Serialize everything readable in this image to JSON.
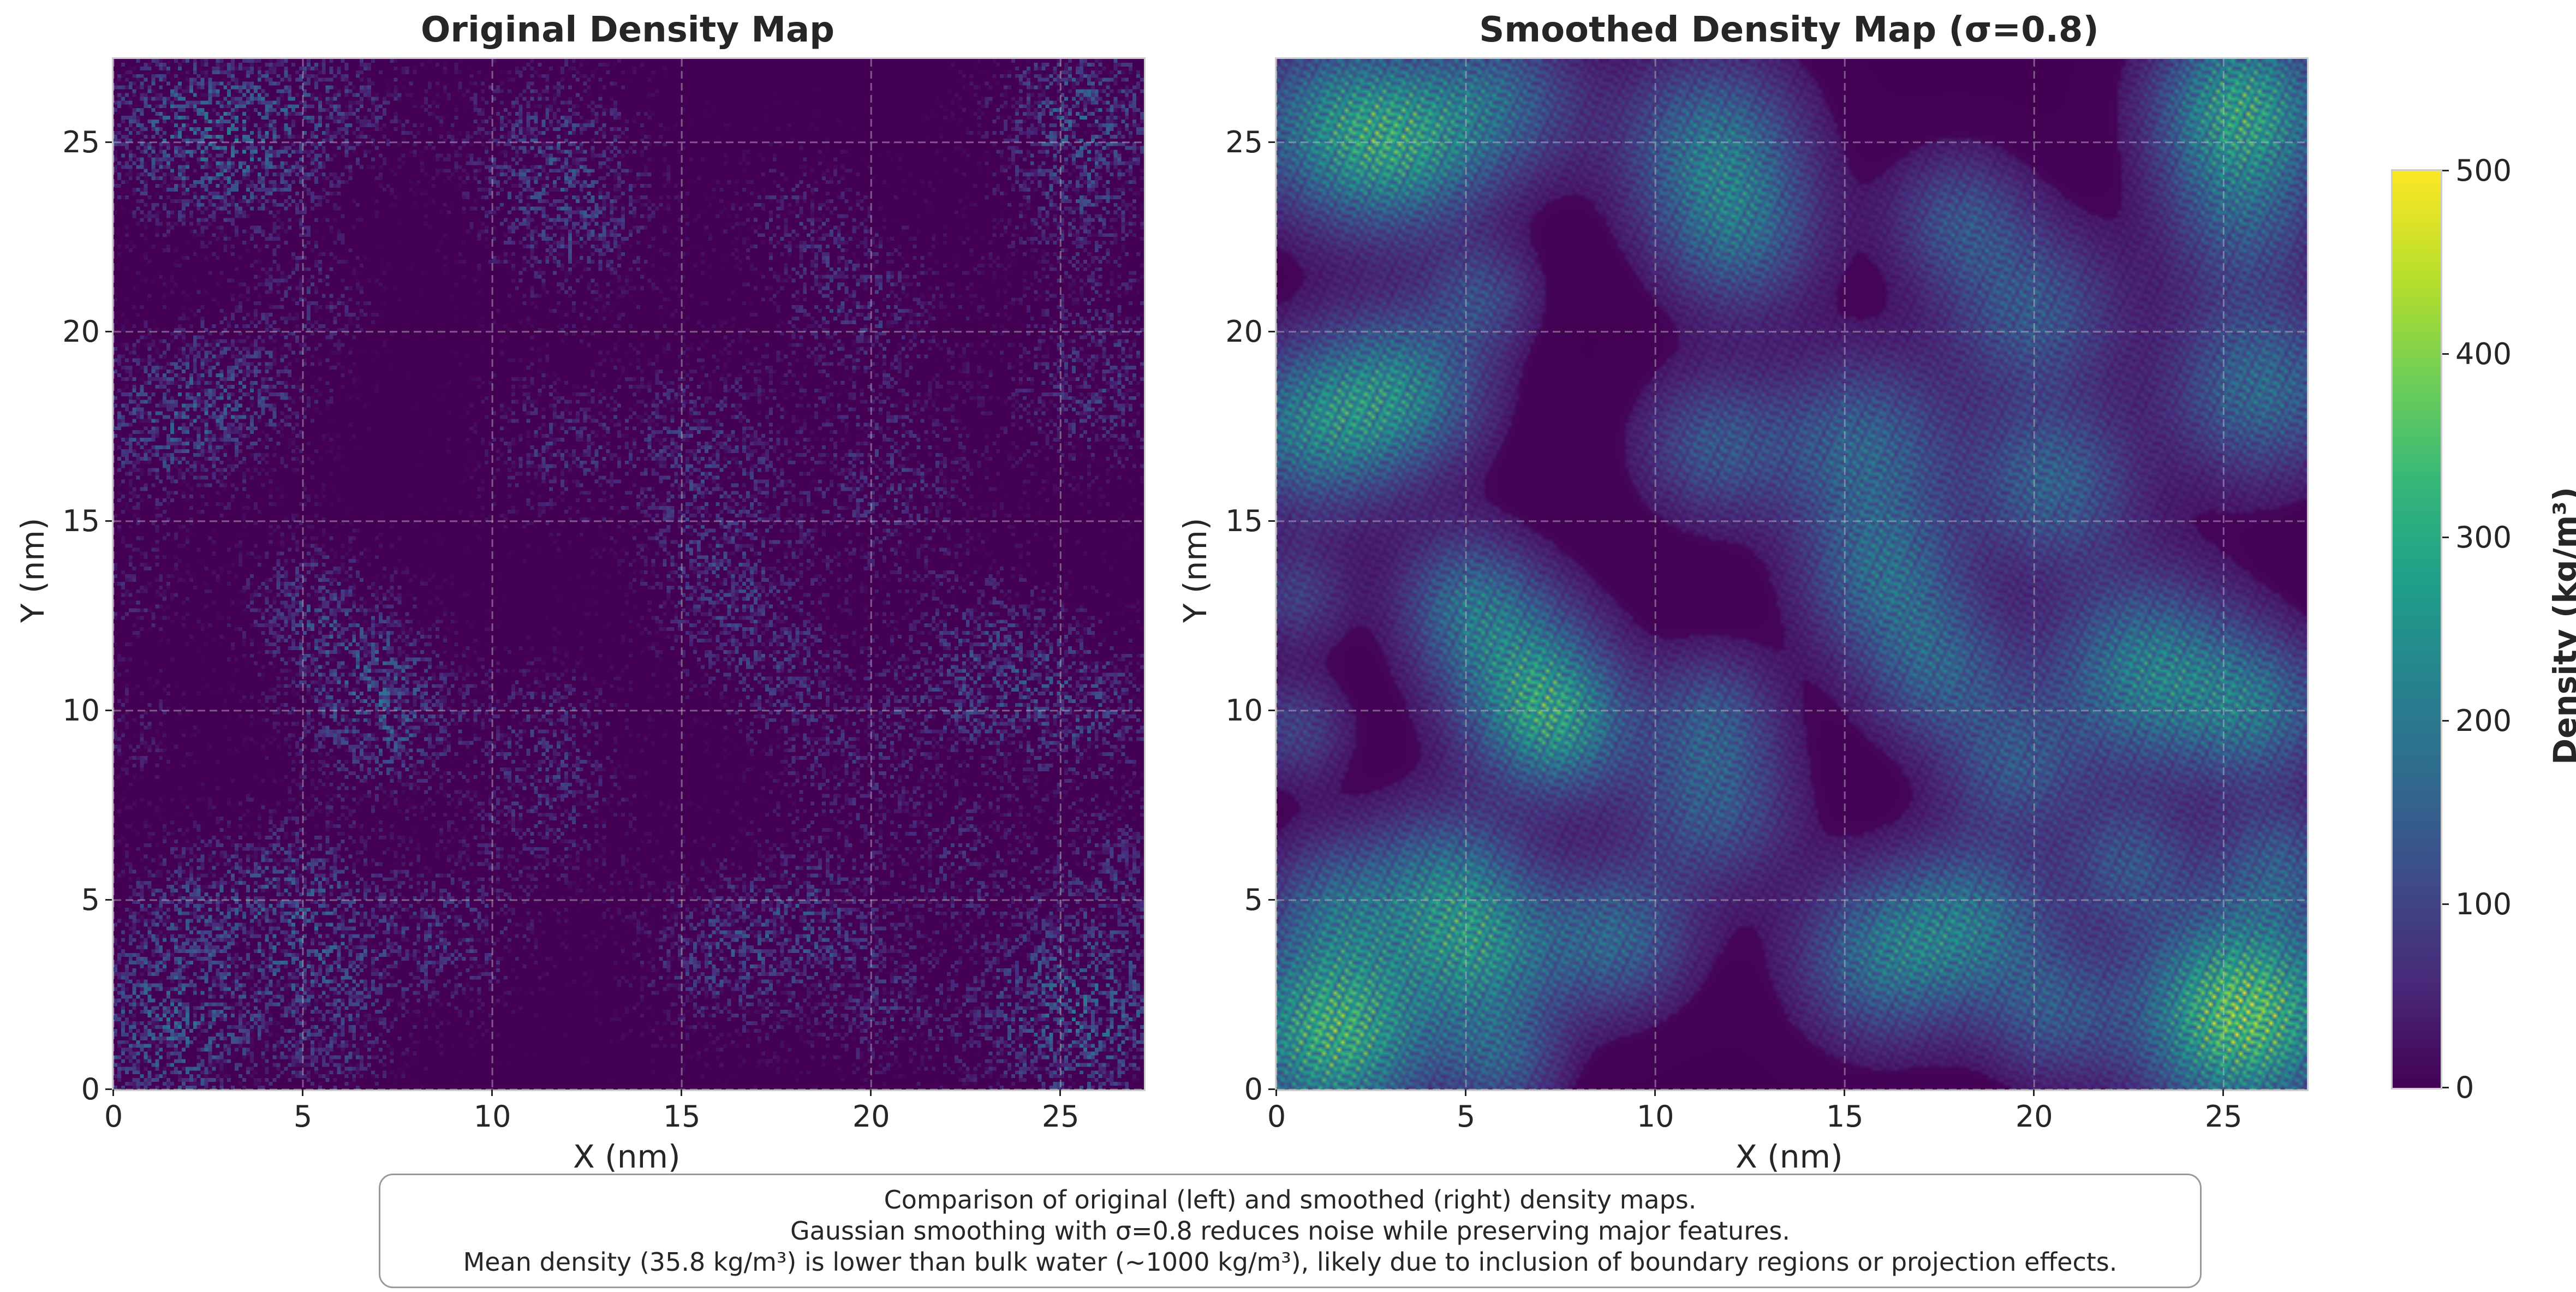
{
  "chart_data": [
    {
      "type": "heatmap",
      "title": "Original Density Map",
      "xlabel": "X (nm)",
      "ylabel": "Y (nm)",
      "xlim": [
        0,
        27.2
      ],
      "ylim": [
        0,
        27.2
      ],
      "xticks": [
        "0",
        "5",
        "10",
        "15",
        "20",
        "25"
      ],
      "yticks": [
        "0",
        "5",
        "10",
        "15",
        "20",
        "25"
      ],
      "grid": true,
      "colormap": "viridis",
      "value_range": [
        0,
        500
      ],
      "blobs": [
        {
          "x": 1.5,
          "y": 25.5,
          "r": 1.8,
          "v": 60
        },
        {
          "x": 3.5,
          "y": 24.8,
          "r": 1.6,
          "v": 55
        },
        {
          "x": 6.0,
          "y": 26.2,
          "r": 1.5,
          "v": 45
        },
        {
          "x": 11.5,
          "y": 25.0,
          "r": 1.7,
          "v": 55
        },
        {
          "x": 12.2,
          "y": 22.5,
          "r": 1.5,
          "v": 45
        },
        {
          "x": 18.0,
          "y": 23.0,
          "r": 1.3,
          "v": 40
        },
        {
          "x": 20.0,
          "y": 20.5,
          "r": 1.6,
          "v": 45
        },
        {
          "x": 25.5,
          "y": 26.0,
          "r": 1.6,
          "v": 75
        },
        {
          "x": 25.5,
          "y": 23.0,
          "r": 1.5,
          "v": 40
        },
        {
          "x": 1.0,
          "y": 17.5,
          "r": 1.6,
          "v": 60
        },
        {
          "x": 3.5,
          "y": 18.5,
          "r": 1.5,
          "v": 55
        },
        {
          "x": 5.5,
          "y": 21.0,
          "r": 1.0,
          "v": 35
        },
        {
          "x": 11.5,
          "y": 17.0,
          "r": 1.4,
          "v": 45
        },
        {
          "x": 15.5,
          "y": 17.0,
          "r": 1.7,
          "v": 50
        },
        {
          "x": 20.5,
          "y": 16.0,
          "r": 1.5,
          "v": 50
        },
        {
          "x": 26.0,
          "y": 18.5,
          "r": 1.7,
          "v": 55
        },
        {
          "x": 0.5,
          "y": 13.0,
          "r": 1.0,
          "v": 35
        },
        {
          "x": 5.0,
          "y": 13.0,
          "r": 1.3,
          "v": 45
        },
        {
          "x": 6.5,
          "y": 11.0,
          "r": 1.6,
          "v": 55
        },
        {
          "x": 7.5,
          "y": 9.5,
          "r": 1.3,
          "v": 50
        },
        {
          "x": 11.5,
          "y": 10.0,
          "r": 1.2,
          "v": 35
        },
        {
          "x": 16.0,
          "y": 13.5,
          "r": 1.5,
          "v": 50
        },
        {
          "x": 17.5,
          "y": 11.0,
          "r": 1.4,
          "v": 45
        },
        {
          "x": 23.0,
          "y": 11.0,
          "r": 1.8,
          "v": 65
        },
        {
          "x": 26.0,
          "y": 10.0,
          "r": 1.4,
          "v": 50
        },
        {
          "x": 0.5,
          "y": 9.5,
          "r": 1.0,
          "v": 35
        },
        {
          "x": 11.5,
          "y": 7.5,
          "r": 1.5,
          "v": 45
        },
        {
          "x": 19.5,
          "y": 8.5,
          "r": 1.3,
          "v": 40
        },
        {
          "x": 22.5,
          "y": 6.0,
          "r": 1.2,
          "v": 40
        },
        {
          "x": 1.5,
          "y": 5.0,
          "r": 1.3,
          "v": 40
        },
        {
          "x": 4.5,
          "y": 5.5,
          "r": 1.5,
          "v": 50
        },
        {
          "x": 5.5,
          "y": 3.5,
          "r": 1.5,
          "v": 55
        },
        {
          "x": 9.0,
          "y": 4.0,
          "r": 1.4,
          "v": 50
        },
        {
          "x": 16.0,
          "y": 3.5,
          "r": 1.6,
          "v": 55
        },
        {
          "x": 18.5,
          "y": 4.5,
          "r": 1.5,
          "v": 50
        },
        {
          "x": 20.5,
          "y": 2.0,
          "r": 1.3,
          "v": 40
        },
        {
          "x": 1.5,
          "y": 1.5,
          "r": 1.8,
          "v": 85
        },
        {
          "x": 6.0,
          "y": 0.7,
          "r": 1.1,
          "v": 40
        },
        {
          "x": 25.5,
          "y": 2.0,
          "r": 1.9,
          "v": 95
        },
        {
          "x": 26.5,
          "y": 6.0,
          "r": 1.2,
          "v": 40
        }
      ]
    },
    {
      "type": "heatmap",
      "title": "Smoothed Density Map (σ=0.8)",
      "xlabel": "X (nm)",
      "ylabel": "Y (nm)",
      "xlim": [
        0,
        27.2
      ],
      "ylim": [
        0,
        27.2
      ],
      "xticks": [
        "0",
        "5",
        "10",
        "15",
        "20",
        "25"
      ],
      "yticks": [
        "0",
        "5",
        "10",
        "15",
        "20",
        "25"
      ],
      "grid": true,
      "colormap": "viridis",
      "value_range": [
        0,
        500
      ],
      "colorbar": {
        "label": "Density (kg/m³)",
        "range": [
          0,
          500
        ],
        "ticks": [
          "0",
          "100",
          "200",
          "300",
          "400",
          "500"
        ]
      },
      "blobs": [
        {
          "x": 1.5,
          "y": 25.5,
          "r": 1.8,
          "v": 200
        },
        {
          "x": 3.5,
          "y": 24.8,
          "r": 1.6,
          "v": 180
        },
        {
          "x": 6.0,
          "y": 26.2,
          "r": 1.5,
          "v": 150
        },
        {
          "x": 11.5,
          "y": 25.0,
          "r": 1.7,
          "v": 190
        },
        {
          "x": 12.2,
          "y": 22.5,
          "r": 1.5,
          "v": 150
        },
        {
          "x": 18.0,
          "y": 23.0,
          "r": 1.3,
          "v": 130
        },
        {
          "x": 20.0,
          "y": 20.5,
          "r": 1.6,
          "v": 150
        },
        {
          "x": 25.5,
          "y": 26.0,
          "r": 1.6,
          "v": 290
        },
        {
          "x": 25.5,
          "y": 23.0,
          "r": 1.5,
          "v": 130
        },
        {
          "x": 1.0,
          "y": 17.5,
          "r": 1.6,
          "v": 220
        },
        {
          "x": 3.5,
          "y": 18.5,
          "r": 1.5,
          "v": 200
        },
        {
          "x": 5.5,
          "y": 21.0,
          "r": 1.0,
          "v": 110
        },
        {
          "x": 11.5,
          "y": 17.0,
          "r": 1.4,
          "v": 140
        },
        {
          "x": 15.5,
          "y": 17.0,
          "r": 1.7,
          "v": 170
        },
        {
          "x": 20.5,
          "y": 16.0,
          "r": 1.5,
          "v": 170
        },
        {
          "x": 26.0,
          "y": 18.5,
          "r": 1.7,
          "v": 190
        },
        {
          "x": 0.5,
          "y": 13.0,
          "r": 1.0,
          "v": 100
        },
        {
          "x": 5.0,
          "y": 13.0,
          "r": 1.3,
          "v": 150
        },
        {
          "x": 6.5,
          "y": 11.0,
          "r": 1.6,
          "v": 190
        },
        {
          "x": 7.5,
          "y": 9.5,
          "r": 1.3,
          "v": 190
        },
        {
          "x": 11.5,
          "y": 10.0,
          "r": 1.2,
          "v": 120
        },
        {
          "x": 16.0,
          "y": 13.5,
          "r": 1.5,
          "v": 170
        },
        {
          "x": 17.5,
          "y": 11.0,
          "r": 1.4,
          "v": 150
        },
        {
          "x": 23.0,
          "y": 11.0,
          "r": 1.8,
          "v": 230
        },
        {
          "x": 26.0,
          "y": 10.0,
          "r": 1.4,
          "v": 170
        },
        {
          "x": 0.5,
          "y": 9.5,
          "r": 1.0,
          "v": 110
        },
        {
          "x": 11.5,
          "y": 7.5,
          "r": 1.5,
          "v": 150
        },
        {
          "x": 19.5,
          "y": 8.5,
          "r": 1.3,
          "v": 130
        },
        {
          "x": 22.5,
          "y": 6.0,
          "r": 1.2,
          "v": 130
        },
        {
          "x": 1.5,
          "y": 5.0,
          "r": 1.3,
          "v": 130
        },
        {
          "x": 4.5,
          "y": 5.5,
          "r": 1.5,
          "v": 170
        },
        {
          "x": 5.5,
          "y": 3.5,
          "r": 1.5,
          "v": 190
        },
        {
          "x": 9.0,
          "y": 4.0,
          "r": 1.4,
          "v": 170
        },
        {
          "x": 16.0,
          "y": 3.5,
          "r": 1.6,
          "v": 190
        },
        {
          "x": 18.5,
          "y": 4.5,
          "r": 1.5,
          "v": 170
        },
        {
          "x": 20.5,
          "y": 2.0,
          "r": 1.3,
          "v": 130
        },
        {
          "x": 1.5,
          "y": 1.5,
          "r": 1.8,
          "v": 330
        },
        {
          "x": 6.0,
          "y": 0.7,
          "r": 1.1,
          "v": 130
        },
        {
          "x": 25.5,
          "y": 2.0,
          "r": 1.9,
          "v": 380
        },
        {
          "x": 26.5,
          "y": 6.0,
          "r": 1.2,
          "v": 130
        }
      ]
    }
  ],
  "caption": {
    "line1": "Comparison of original (left) and smoothed (right) density maps.",
    "line2": "Gaussian smoothing with σ=0.8 reduces noise while preserving major features.",
    "line3": "Mean density (35.8 kg/m³) is lower than bulk water (~1000 kg/m³), likely due to inclusion of boundary regions or projection effects."
  }
}
